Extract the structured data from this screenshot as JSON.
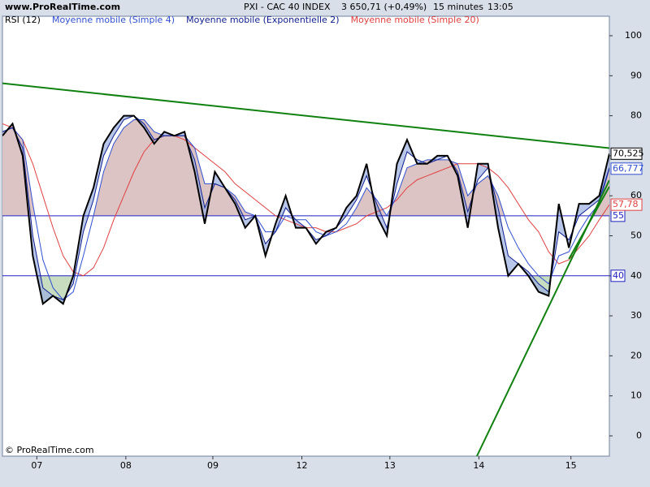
{
  "header": {
    "site": "www.ProRealTime.com",
    "instrument": "PXI - CAC 40 INDEX",
    "price": "3 650,71 (+0,49%)",
    "timeframe": "15 minutes",
    "time": "13:05"
  },
  "footer": "© ProRealTime.com",
  "chart_data": {
    "type": "line",
    "x": [
      0,
      1,
      2,
      3,
      4,
      5,
      6,
      7,
      8,
      9,
      10,
      11,
      12,
      13,
      14,
      15,
      16,
      17,
      18,
      19,
      20,
      21,
      22,
      23,
      24,
      25,
      26,
      27,
      28,
      29,
      30,
      31,
      32,
      33,
      34,
      35,
      36,
      37,
      38,
      39,
      40,
      41,
      42,
      43,
      44,
      45,
      46,
      47,
      48,
      49,
      50,
      51,
      52,
      53,
      54,
      55,
      56,
      57,
      58,
      59,
      60
    ],
    "xlim": [
      0,
      60
    ],
    "xticks": [
      {
        "value": 3.4,
        "label": "07"
      },
      {
        "value": 12.2,
        "label": "08"
      },
      {
        "value": 20.8,
        "label": "09"
      },
      {
        "value": 29.6,
        "label": "12"
      },
      {
        "value": 38.3,
        "label": "13"
      },
      {
        "value": 47.1,
        "label": "14"
      },
      {
        "value": 56.2,
        "label": "15"
      }
    ],
    "ylim": [
      -5.07,
      104.87
    ],
    "yticks": [
      0,
      10,
      20,
      30,
      40,
      50,
      60,
      70,
      80,
      90,
      100
    ],
    "levels": [
      {
        "value": 55,
        "color": "#2020c0"
      },
      {
        "value": 40,
        "color": "#2020c0"
      }
    ],
    "series": [
      {
        "name": "RSI (12)",
        "color": "#000000",
        "width": 2,
        "last_label": "70,525",
        "values": [
          75,
          78,
          70,
          45,
          33,
          35,
          33,
          40,
          55,
          62,
          73,
          77,
          80,
          80,
          77,
          73,
          76,
          75,
          76,
          66,
          53,
          66,
          62,
          58,
          52,
          55,
          45,
          53,
          60,
          52,
          52,
          48,
          51,
          52,
          57,
          60,
          68,
          55,
          50,
          68,
          74,
          68,
          68,
          70,
          70,
          65,
          52,
          68,
          68,
          52,
          40,
          43,
          40,
          36,
          35,
          58,
          47,
          58,
          58,
          60,
          70.525
        ]
      },
      {
        "name": "Moyenne mobile (Simple 4)",
        "color": "#3050d0",
        "width": 1,
        "last_label": "66,777",
        "values": [
          76,
          77,
          74,
          58,
          44,
          37,
          34,
          36,
          45,
          55,
          66,
          73,
          77,
          79,
          79,
          76,
          75,
          75,
          75,
          72,
          63,
          63,
          62,
          60,
          56,
          55,
          51,
          51,
          55,
          54,
          54,
          51,
          50,
          51,
          53,
          57,
          62,
          59,
          55,
          60,
          67,
          68,
          69,
          69,
          69,
          68,
          60,
          63,
          65,
          60,
          52,
          47,
          43,
          40,
          38,
          45,
          46,
          51,
          55,
          58,
          66.777
        ]
      },
      {
        "name": "Moyenne mobile (Exponentielle 2)",
        "color": "#102090",
        "width": 1,
        "values": [
          76,
          77,
          72,
          50,
          37,
          35,
          34,
          38,
          51,
          59,
          70,
          75,
          79,
          80,
          78,
          74,
          75,
          75,
          75,
          69,
          57,
          63,
          62,
          59,
          54,
          55,
          48,
          51,
          57,
          54,
          52,
          49,
          50,
          52,
          55,
          59,
          65,
          58,
          52,
          63,
          71,
          69,
          68,
          69,
          70,
          66,
          56,
          64,
          67,
          57,
          45,
          43,
          41,
          38,
          36,
          51,
          49,
          55,
          57,
          59,
          67
        ]
      },
      {
        "name": "Moyenne mobile (Simple 20)",
        "color": "#e04040",
        "width": 1,
        "last_label": "57,78",
        "values": [
          78,
          77,
          74,
          68,
          60,
          52,
          45,
          41,
          40,
          42,
          47,
          54,
          60,
          66,
          71,
          74,
          75,
          75,
          74,
          72,
          70,
          68,
          66,
          63,
          61,
          59,
          57,
          55,
          54,
          53,
          52,
          52,
          51,
          51,
          52,
          53,
          55,
          56,
          57,
          59,
          62,
          64,
          65,
          66,
          67,
          68,
          68,
          68,
          67,
          65,
          62,
          58,
          54,
          51,
          46,
          43,
          44,
          47,
          50,
          54,
          57.78
        ]
      }
    ],
    "trendlines": [
      {
        "color": "#108010",
        "x": [
          0,
          60
        ],
        "y": [
          88.1,
          71.9
        ]
      },
      {
        "color": "#108010",
        "x": [
          46.9,
          60
        ],
        "y": [
          -5.07,
          63.9
        ]
      },
      {
        "color": "#108010",
        "x": [
          56,
          60
        ],
        "y": [
          44.2,
          62.3
        ]
      }
    ]
  }
}
